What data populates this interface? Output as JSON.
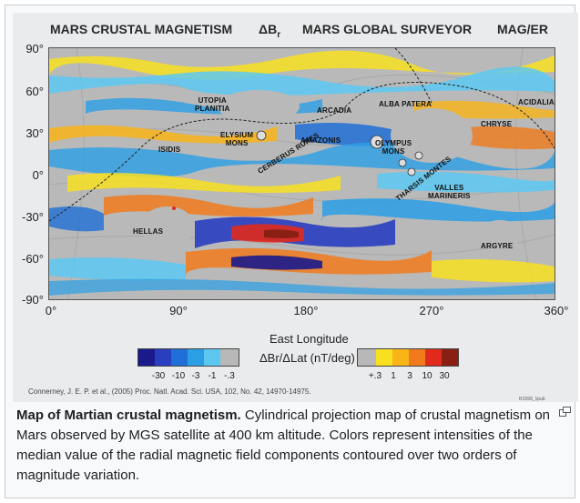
{
  "header": {
    "title_left": "MARS CRUSTAL MAGNETISM",
    "symbol": "ΔB",
    "symbol_sub": "r",
    "title_center": "MARS GLOBAL SURVEYOR",
    "title_right": "MAG/ER"
  },
  "axes": {
    "y_ticks": [
      "90°",
      "60°",
      "30°",
      "0°",
      "-30°",
      "-60°",
      "-90°"
    ],
    "x_ticks": [
      "0°",
      "90°",
      "180°",
      "270°",
      "360°"
    ],
    "x_title": "East Longitude"
  },
  "regions": {
    "utopia": "UTOPIA",
    "planitia": "PLANITIA",
    "elysium": "ELYSIUM",
    "elysium_mons": "MONS",
    "isidis": "ISIDIS",
    "cerberus": "CERBERUS RUPES",
    "amazonis": "AMAZONIS",
    "arcadia": "ARCADIA",
    "alba": "ALBA PATERA",
    "olympus": "OLYMPUS",
    "olympus_mons": "MONS",
    "tharsis": "THARSIS MONTES",
    "valles": "VALLES",
    "marineris": "MARINERIS",
    "acidalia": "ACIDALIA",
    "chryse": "CHRYSE",
    "hellas": "HELLAS",
    "argyre": "ARGYRE"
  },
  "legend": {
    "title": "ΔBr/ΔLat (nT/deg)",
    "neg_ticks": [
      "-30",
      "-10",
      "-3",
      "-1",
      "-.3"
    ],
    "pos_ticks": [
      "+.3",
      "1",
      "3",
      "10",
      "30"
    ],
    "neg_colors": [
      "#1a1a8c",
      "#2a3ec0",
      "#1f6fd6",
      "#2a9fe6",
      "#5cc8f2",
      "#b8b8b8"
    ],
    "pos_colors": [
      "#b8b8b8",
      "#f8e020",
      "#f9b418",
      "#f07a1c",
      "#e02a1c",
      "#8a1f14"
    ]
  },
  "credit": "Connerney, J. E. P. et al., (2005) Proc. Natl. Acad. Sci. USA, 102, No. 42, 14970-14975.",
  "figure_id": "R1599_1pub",
  "caption": {
    "bold": "Map of Martian crustal magnetism.",
    "text": " Cylindrical projection map of crustal magnetism on Mars observed by MGS satellite at 400 km altitude. Colors represent intensities of the median value of the radial magnetic field components contoured over two orders of magnitude variation."
  },
  "icons": {
    "enlarge": "magnify-clip-icon"
  }
}
